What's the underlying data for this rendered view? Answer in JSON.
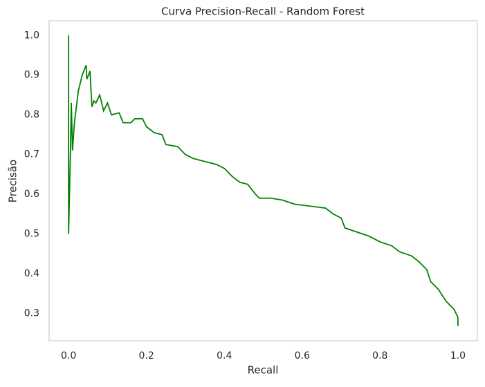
{
  "chart_data": {
    "type": "line",
    "title": "Curva Precision-Recall - Random Forest",
    "x_label": "Recall",
    "y_label": "Precisão",
    "grid": false,
    "xlim": [
      -0.05,
      1.05
    ],
    "ylim": [
      0.231,
      1.037
    ],
    "xticks": [
      {
        "value": 0,
        "label": "0.0"
      },
      0.2,
      0.4,
      0.6,
      0.8,
      {
        "value": 1,
        "label": "1.0"
      }
    ],
    "yticks": [
      0.3,
      0.4,
      0.5,
      0.6,
      0.7,
      0.8,
      0.9,
      {
        "value": 1,
        "label": "1.0"
      }
    ],
    "series": [
      {
        "color": "#008000",
        "x": [
          0,
          0,
          0.005,
          0.007,
          0.01,
          0.015,
          0.025,
          0.035,
          0.045,
          0.047,
          0.055,
          0.06,
          0.065,
          0.07,
          0.08,
          0.09,
          0.1,
          0.11,
          0.13,
          0.14,
          0.16,
          0.17,
          0.19,
          0.2,
          0.22,
          0.24,
          0.25,
          0.28,
          0.3,
          0.32,
          0.34,
          0.36,
          0.38,
          0.4,
          0.42,
          0.44,
          0.46,
          0.48,
          0.49,
          0.52,
          0.55,
          0.58,
          0.62,
          0.66,
          0.68,
          0.7,
          0.71,
          0.74,
          0.77,
          0.8,
          0.83,
          0.85,
          0.88,
          0.9,
          0.92,
          0.93,
          0.95,
          0.97,
          0.99,
          1.0,
          1.0
        ],
        "values": [
          1.0,
          0.5,
          0.72,
          0.83,
          0.71,
          0.78,
          0.86,
          0.9,
          0.925,
          0.89,
          0.91,
          0.82,
          0.835,
          0.83,
          0.85,
          0.81,
          0.83,
          0.8,
          0.805,
          0.78,
          0.78,
          0.79,
          0.79,
          0.77,
          0.755,
          0.75,
          0.725,
          0.72,
          0.7,
          0.69,
          0.685,
          0.68,
          0.675,
          0.665,
          0.645,
          0.63,
          0.625,
          0.6,
          0.59,
          0.59,
          0.585,
          0.575,
          0.57,
          0.565,
          0.55,
          0.54,
          0.515,
          0.505,
          0.495,
          0.48,
          0.47,
          0.455,
          0.445,
          0.43,
          0.41,
          0.38,
          0.36,
          0.33,
          0.31,
          0.29,
          0.268
        ]
      }
    ]
  }
}
